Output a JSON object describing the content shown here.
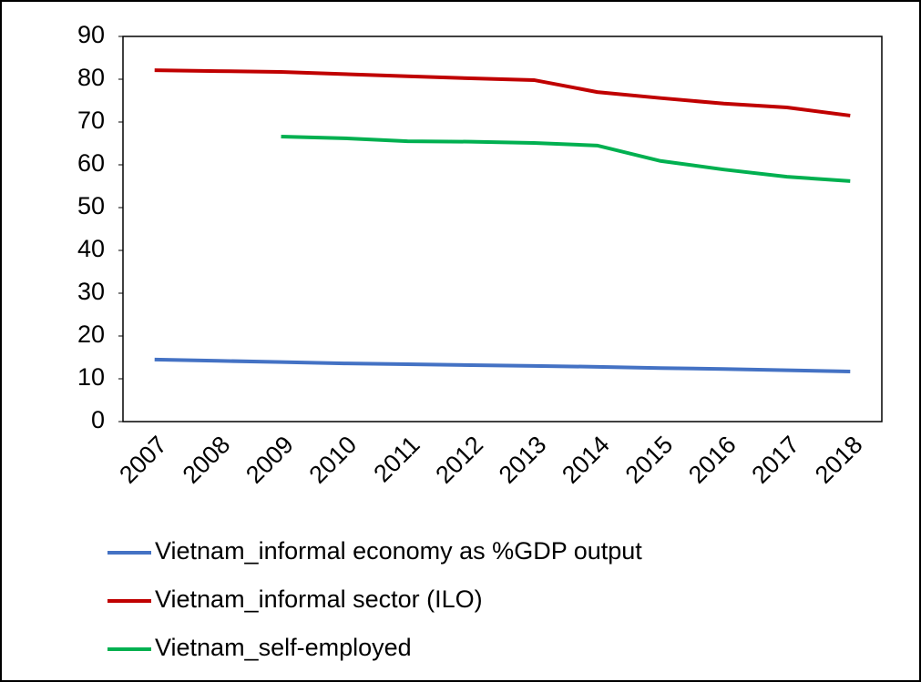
{
  "chart_data": {
    "type": "line",
    "categories": [
      "2007",
      "2008",
      "2009",
      "2010",
      "2011",
      "2012",
      "2013",
      "2014",
      "2015",
      "2016",
      "2017",
      "2018"
    ],
    "series": [
      {
        "name": "Vietnam_informal economy as %GDP output",
        "color": "#4472c4",
        "values": [
          14.5,
          14.2,
          13.9,
          13.6,
          13.4,
          13.2,
          13.0,
          12.8,
          12.5,
          12.3,
          12.0,
          11.7
        ]
      },
      {
        "name": "Vietnam_informal sector (ILO)",
        "color": "#c00000",
        "values": [
          82.1,
          81.9,
          81.7,
          81.2,
          80.7,
          80.2,
          79.8,
          77.0,
          75.6,
          74.3,
          73.4,
          71.5
        ]
      },
      {
        "name": "Vietnam_self-employed",
        "color": "#00b050",
        "values": [
          null,
          null,
          66.6,
          66.2,
          65.5,
          65.4,
          65.1,
          64.5,
          60.9,
          58.9,
          57.2,
          56.2
        ]
      }
    ],
    "ylim": [
      0,
      90
    ],
    "yticks": [
      0,
      10,
      20,
      30,
      40,
      50,
      60,
      70,
      80,
      90
    ],
    "legend": "bottom"
  }
}
